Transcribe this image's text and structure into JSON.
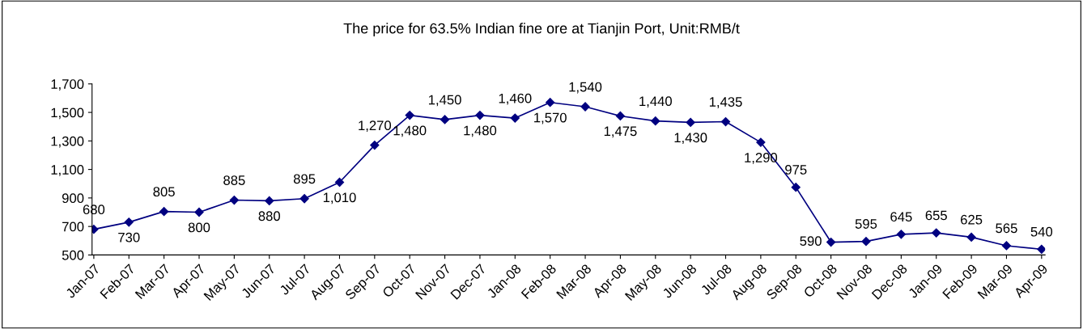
{
  "chart_data": {
    "type": "line",
    "title": "The price for 63.5% Indian fine ore at Tianjin Port, Unit:RMB/t",
    "categories": [
      "Jan-07",
      "Feb-07",
      "Mar-07",
      "Apr-07",
      "May-07",
      "Jun-07",
      "Jul-07",
      "Aug-07",
      "Sep-07",
      "Oct-07",
      "Nov-07",
      "Dec-07",
      "Jan-08",
      "Feb-08",
      "Mar-08",
      "Apr-08",
      "May-08",
      "Jun-08",
      "Jul-08",
      "Aug-08",
      "Sep-08",
      "Oct-08",
      "Nov-08",
      "Dec-08",
      "Jan-09",
      "Feb-09",
      "Mar-09",
      "Apr-09"
    ],
    "series": [
      {
        "color": "#000080",
        "values": [
          680,
          730,
          805,
          800,
          885,
          880,
          895,
          1010,
          1270,
          1480,
          1450,
          1480,
          1460,
          1570,
          1540,
          1475,
          1440,
          1430,
          1435,
          1290,
          975,
          590,
          595,
          645,
          655,
          625,
          565,
          540
        ],
        "value_labels": [
          "680",
          "730",
          "805",
          "800",
          "885",
          "880",
          "895",
          "1,010",
          "1,270",
          "1,480",
          "1,450",
          "1,480",
          "1,460",
          "1,570",
          "1,540",
          "1,475",
          "1,440",
          "1,430",
          "1,435",
          "1,290",
          "975",
          "590",
          "595",
          "645",
          "655",
          "625",
          "565",
          "540"
        ]
      }
    ],
    "ylim": [
      500,
      1700
    ],
    "yticks": [
      {
        "value": 500,
        "label": "500"
      },
      {
        "value": 700,
        "label": "700"
      },
      {
        "value": 900,
        "label": "900"
      },
      {
        "value": 1100,
        "label": "1,100"
      },
      {
        "value": 1300,
        "label": "1,300"
      },
      {
        "value": 1500,
        "label": "1,500"
      },
      {
        "value": 1700,
        "label": "1,700"
      }
    ],
    "grid": false,
    "legend": false,
    "marker": "diamond",
    "line_style": "solid"
  }
}
